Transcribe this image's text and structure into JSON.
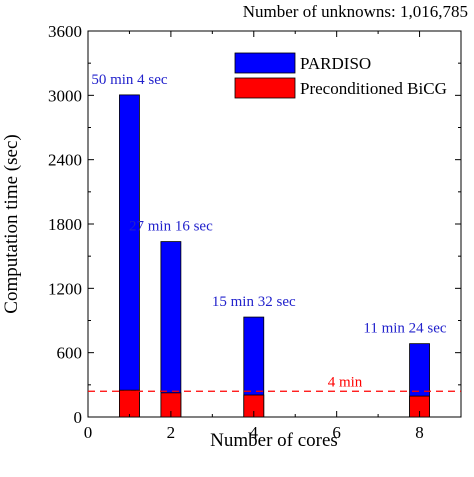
{
  "chart_data": {
    "type": "bar",
    "title": "Number of unknowns: 1,016,785",
    "xlabel": "Number of cores",
    "ylabel": "Computation time (sec)",
    "xlim": [
      0,
      9
    ],
    "ylim": [
      0,
      3600
    ],
    "xticks": [
      "0",
      "2",
      "4",
      "6",
      "8"
    ],
    "xtick_values": [
      0,
      2,
      4,
      6,
      8
    ],
    "yticks": [
      "0",
      "600",
      "1200",
      "1800",
      "2400",
      "3000",
      "3600"
    ],
    "ytick_values": [
      0,
      600,
      1200,
      1800,
      2400,
      3000,
      3600
    ],
    "x": [
      1,
      2,
      4,
      8
    ],
    "series": [
      {
        "name": "PARDISO",
        "color": "#0000ff",
        "values": [
          3004,
          1636,
          932,
          684
        ]
      },
      {
        "name": "Preconditioned BiCG",
        "color": "#ff0000",
        "values": [
          250,
          225,
          205,
          195
        ]
      }
    ],
    "data_labels": [
      "50 min 4 sec",
      "27 min 16 sec",
      "15 min 32 sec",
      "11 min 24 sec"
    ],
    "data_label_color": "#2222cc",
    "reference_line": {
      "value": 240,
      "label": "4 min",
      "color": "#ff0000",
      "style": "dashed"
    },
    "legend": {
      "position": "top-right"
    },
    "grid": false
  }
}
